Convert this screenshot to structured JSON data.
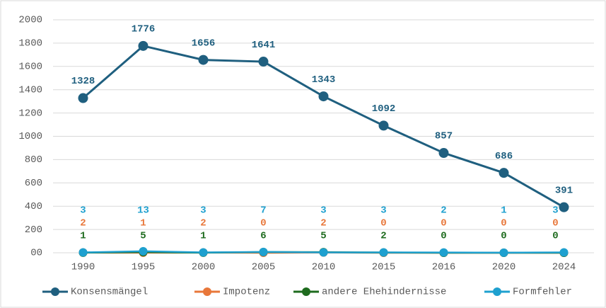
{
  "chart_data": {
    "type": "line",
    "categories": [
      "1990",
      "1995",
      "2000",
      "2005",
      "2010",
      "2015",
      "2016",
      "2020",
      "2024"
    ],
    "series": [
      {
        "name": "Konsensmängel",
        "color": "#1f5f7f",
        "values": [
          1328,
          1776,
          1656,
          1641,
          1343,
          1092,
          857,
          686,
          391
        ]
      },
      {
        "name": "Impotenz",
        "color": "#e8773a",
        "values": [
          2,
          1,
          2,
          0,
          2,
          0,
          0,
          0,
          0
        ]
      },
      {
        "name": "andere Ehehindernisse",
        "color": "#1e6b1e",
        "values": [
          1,
          5,
          1,
          6,
          5,
          2,
          0,
          0,
          0
        ]
      },
      {
        "name": "Formfehler",
        "color": "#1ea0cf",
        "values": [
          3,
          13,
          3,
          7,
          3,
          3,
          2,
          1,
          3
        ]
      }
    ],
    "ylim": [
      0,
      2000
    ],
    "yticks": [
      {
        "value": 0,
        "label": "00"
      },
      200,
      400,
      600,
      800,
      1000,
      1200,
      1400,
      1600,
      1800,
      2000
    ],
    "grid": true,
    "legend": "bottom"
  }
}
